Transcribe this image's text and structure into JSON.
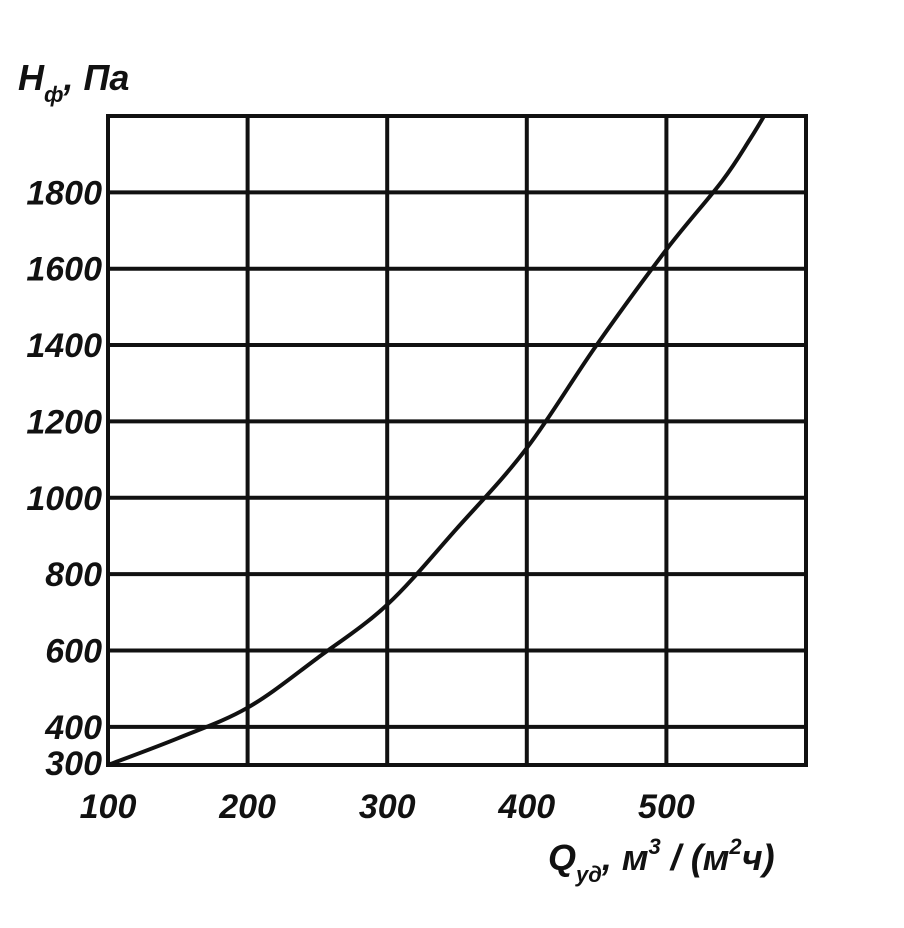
{
  "chart_data": {
    "type": "line",
    "title": "",
    "ylabel": "Hф, Па",
    "xlabel": "Qуд, м3 / (м2ч)",
    "ylabel_parts": {
      "main": "H",
      "sub": "ф",
      "rest": ", Па"
    },
    "xlabel_parts": {
      "main": "Q",
      "sub": "уд",
      "mid": ", м",
      "sup1": "3",
      "mid2": " / (м",
      "sup2": "2",
      "end": "ч)"
    },
    "x_ticks": [
      "100",
      "200",
      "300",
      "400",
      "500"
    ],
    "y_ticks": [
      "300",
      "400",
      "600",
      "800",
      "1000",
      "1200",
      "1400",
      "1600",
      "1800"
    ],
    "y_tick_values": [
      300,
      400,
      600,
      800,
      1000,
      1200,
      1400,
      1600,
      1800
    ],
    "xlim": [
      100,
      600
    ],
    "ylim": [
      300,
      2000
    ],
    "x_grid": [
      100,
      200,
      300,
      400,
      500,
      600
    ],
    "y_grid": [
      400,
      600,
      800,
      1000,
      1200,
      1400,
      1600,
      1800,
      2000
    ],
    "grid": true,
    "line_color": "#111111",
    "series": [
      {
        "x": [
          100,
          150,
          200,
          250,
          300,
          350,
          400,
          450,
          500,
          540,
          560,
          570
        ],
        "y": [
          300,
          370,
          450,
          580,
          720,
          920,
          1130,
          1400,
          1650,
          1830,
          1940,
          2000
        ]
      }
    ]
  }
}
